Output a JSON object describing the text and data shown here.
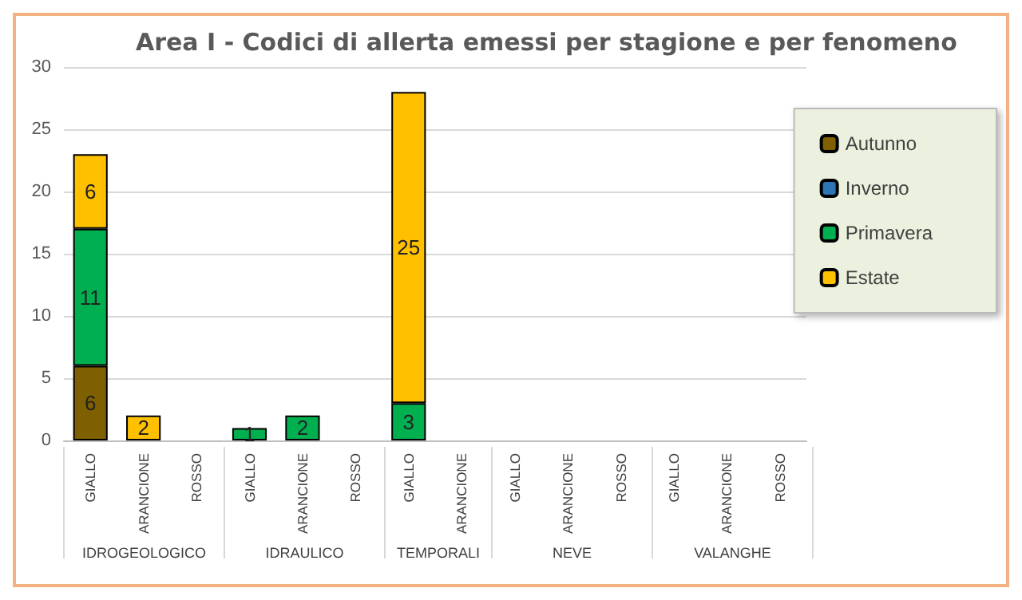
{
  "chart_data": {
    "type": "bar",
    "title": "Area I - Codici di allerta emessi per stagione e per fenomeno",
    "categories": [
      "GIALLO",
      "ARANCIONE",
      "ROSSO",
      "GIALLO",
      "ARANCIONE",
      "ROSSO",
      "GIALLO",
      "ARANCIONE",
      "GIALLO",
      "ARANCIONE",
      "ROSSO",
      "GIALLO",
      "ARANCIONE",
      "ROSSO"
    ],
    "annotations": [
      "IDROGEOLOGICO",
      "IDRAULICO",
      "TEMPORALI",
      "NEVE",
      "VALANGHE"
    ],
    "stacked": true,
    "series": [
      {
        "name": "Autunno",
        "color": "#7f6000",
        "values": [
          6,
          null,
          null,
          null,
          null,
          null,
          null,
          null,
          null,
          null,
          null,
          null,
          null,
          null
        ]
      },
      {
        "name": "Inverno",
        "color": "#2e75b6",
        "values": [
          null,
          null,
          null,
          null,
          null,
          null,
          null,
          null,
          null,
          null,
          null,
          null,
          null,
          null
        ]
      },
      {
        "name": "Primavera",
        "color": "#00b050",
        "values": [
          11,
          null,
          null,
          1,
          2,
          null,
          3,
          null,
          null,
          null,
          null,
          null,
          null,
          null
        ]
      },
      {
        "name": "Estate",
        "color": "#ffc000",
        "values": [
          6,
          2,
          null,
          null,
          null,
          null,
          25,
          null,
          null,
          null,
          null,
          null,
          null,
          null
        ]
      }
    ],
    "ylim": [
      0,
      30
    ],
    "yticks": [
      0,
      5,
      10,
      15,
      20,
      25,
      30
    ],
    "grid": "y",
    "legend": "right",
    "data_labels": true
  }
}
